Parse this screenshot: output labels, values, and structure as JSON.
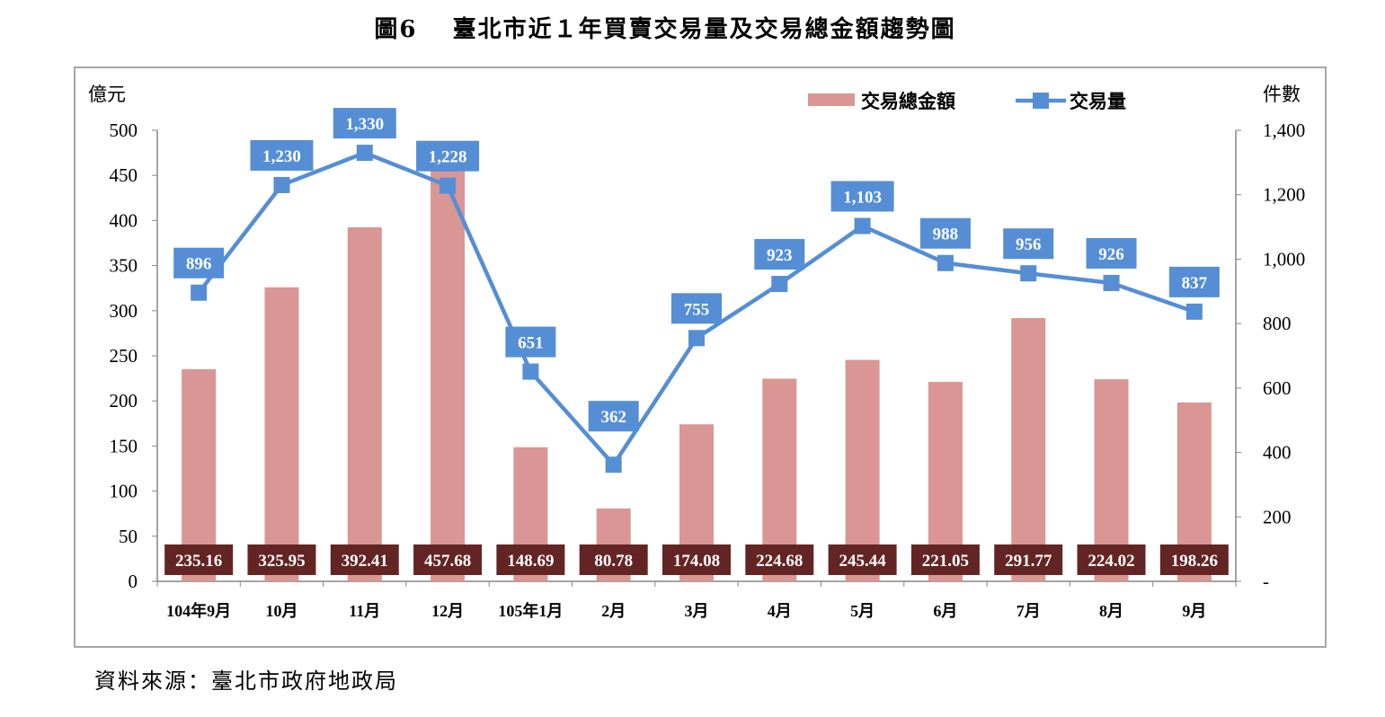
{
  "title": "圖6　 臺北市近１年買賣交易量及交易總金額趨勢圖",
  "source": "資料來源：臺北市政府地政局",
  "chart_data": {
    "type": "bar+line",
    "title": "臺北市近１年買賣交易量及交易總金額趨勢圖",
    "categories": [
      "104年9月",
      "10月",
      "11月",
      "12月",
      "105年1月",
      "2月",
      "3月",
      "4月",
      "5月",
      "6月",
      "7月",
      "8月",
      "9月"
    ],
    "series": [
      {
        "name": "交易總金額",
        "type": "bar",
        "axis": "left",
        "color": "#d99694",
        "label_bg": "#632523",
        "values": [
          235.16,
          325.95,
          392.41,
          457.68,
          148.69,
          80.78,
          174.08,
          224.68,
          245.44,
          221.05,
          291.77,
          224.02,
          198.26
        ],
        "labels": [
          "235.16",
          "325.95",
          "392.41",
          "457.68",
          "148.69",
          "80.78",
          "174.08",
          "224.68",
          "245.44",
          "221.05",
          "291.77",
          "224.02",
          "198.26"
        ]
      },
      {
        "name": "交易量",
        "type": "line",
        "axis": "right",
        "color": "#558ed5",
        "values": [
          896,
          1230,
          1330,
          1228,
          651,
          362,
          755,
          923,
          1103,
          988,
          956,
          926,
          837
        ],
        "labels": [
          "896",
          "1,230",
          "1,330",
          "1,228",
          "651",
          "362",
          "755",
          "923",
          "1,103",
          "988",
          "956",
          "926",
          "837"
        ]
      }
    ],
    "ylabel_left": "億元",
    "ylabel_right": "件數",
    "ylim_left": [
      0,
      500
    ],
    "ylim_right": [
      0,
      1400
    ],
    "yticks_left": [
      "0",
      "50",
      "100",
      "150",
      "200",
      "250",
      "300",
      "350",
      "400",
      "450",
      "500"
    ],
    "yticks_right": [
      "-",
      "200",
      "400",
      "600",
      "800",
      "1,000",
      "1,200",
      "1,400"
    ],
    "legend": "top-right",
    "grid": false
  }
}
